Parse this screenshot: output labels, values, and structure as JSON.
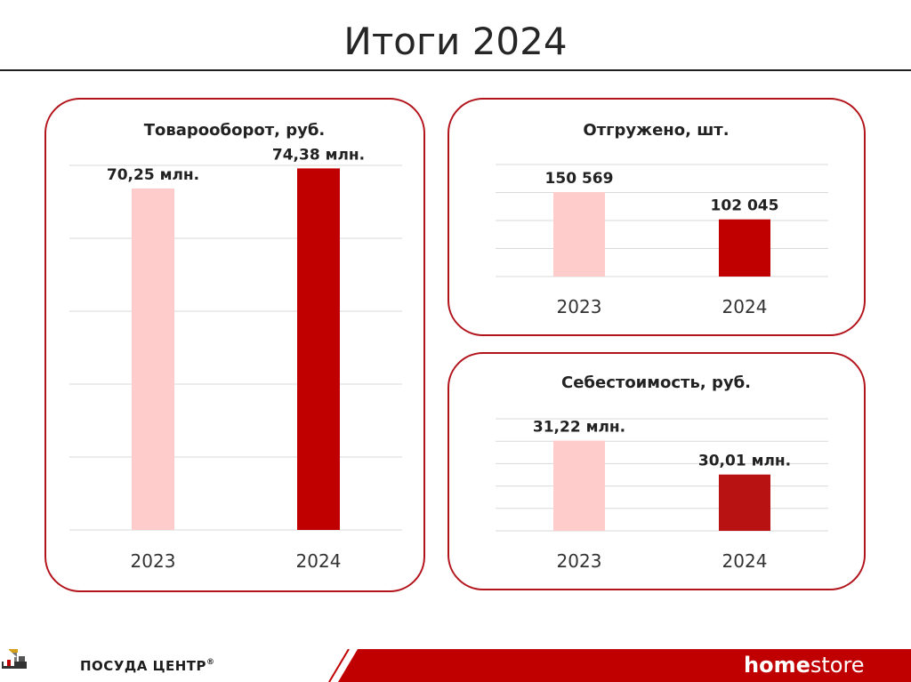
{
  "slide": {
    "title": "Итоги 2024"
  },
  "colors": {
    "light": "#ffcccc",
    "dark": "#c00000",
    "dark2": "#b81212",
    "border": "#b3131b",
    "grid": "#d9d9d9"
  },
  "chart_data": [
    {
      "type": "bar",
      "title": "Товарооборот, руб.",
      "categories": [
        "2023",
        "2024"
      ],
      "values": [
        70.25,
        74.38
      ],
      "data_labels": [
        "70,25 млн.",
        "74,38 млн."
      ],
      "unit": "млн. руб.",
      "ylim": [
        0,
        75
      ],
      "grid": true,
      "legend": "none"
    },
    {
      "type": "bar",
      "title": "Отгружено, шт.",
      "categories": [
        "2023",
        "2024"
      ],
      "values": [
        150569,
        102045
      ],
      "data_labels": [
        "150 569",
        "102 045"
      ],
      "ylim": [
        0,
        200000
      ],
      "grid": true,
      "legend": "none"
    },
    {
      "type": "bar",
      "title": "Себестоимость, руб.",
      "categories": [
        "2023",
        "2024"
      ],
      "values": [
        31.22,
        30.01
      ],
      "data_labels": [
        "31,22 млн.",
        "30,01 млн."
      ],
      "unit": "млн. руб.",
      "ylim": [
        28,
        32
      ],
      "grid": true,
      "legend": "none"
    }
  ],
  "footer": {
    "left_brand": "ПОСУДА ЦЕНТР",
    "left_brand_mark": "®",
    "right_brand_bold": "home",
    "right_brand_light": "store"
  }
}
